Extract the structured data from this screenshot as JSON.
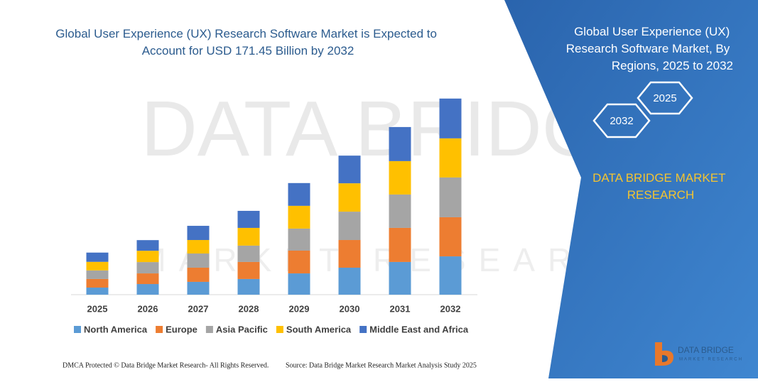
{
  "chart_data": {
    "type": "bar",
    "stacked": true,
    "title": "Global User Experience (UX) Research Software Market is Expected to Account for USD 171.45 Billion by 2032",
    "categories": [
      "2025",
      "2026",
      "2027",
      "2028",
      "2029",
      "2030",
      "2031",
      "2032"
    ],
    "series": [
      {
        "name": "North America",
        "color": "#5b9bd5",
        "values": [
          6.2,
          9.3,
          11.2,
          13.7,
          18.6,
          23.6,
          28.6,
          33.5
        ]
      },
      {
        "name": "Europe",
        "color": "#ed7d31",
        "values": [
          7.5,
          9.3,
          12.4,
          14.9,
          19.9,
          24.2,
          29.8,
          34.2
        ]
      },
      {
        "name": "Asia Pacific",
        "color": "#a5a5a5",
        "values": [
          7.5,
          9.9,
          12.4,
          14.3,
          19.3,
          24.8,
          29.2,
          34.8
        ]
      },
      {
        "name": "South America",
        "color": "#ffc000",
        "values": [
          7.5,
          9.9,
          11.8,
          15.5,
          19.9,
          24.8,
          29.2,
          34.2
        ]
      },
      {
        "name": "Middle East and Africa",
        "color": "#4472c4",
        "values": [
          8.1,
          9.3,
          12.4,
          14.9,
          19.9,
          24.2,
          29.8,
          34.8
        ]
      }
    ],
    "ylim": [
      0,
      172
    ],
    "legend": "bottom"
  },
  "side_panel": {
    "title": "Global User Experience (UX) Research Software Market, By Regions, 2025 to 2032",
    "badges": [
      "2025",
      "2032"
    ],
    "brand": "DATA BRIDGE MARKET RESEARCH"
  },
  "logo": {
    "name": "DATA BRIDGE",
    "tagline": "MARKET RESEARCH"
  },
  "footer": {
    "left": "DMCA Protected © Data Bridge Market Research-  All Rights Reserved.",
    "right": "Source: Data Bridge Market Research  Market Analysis Study 2025"
  }
}
